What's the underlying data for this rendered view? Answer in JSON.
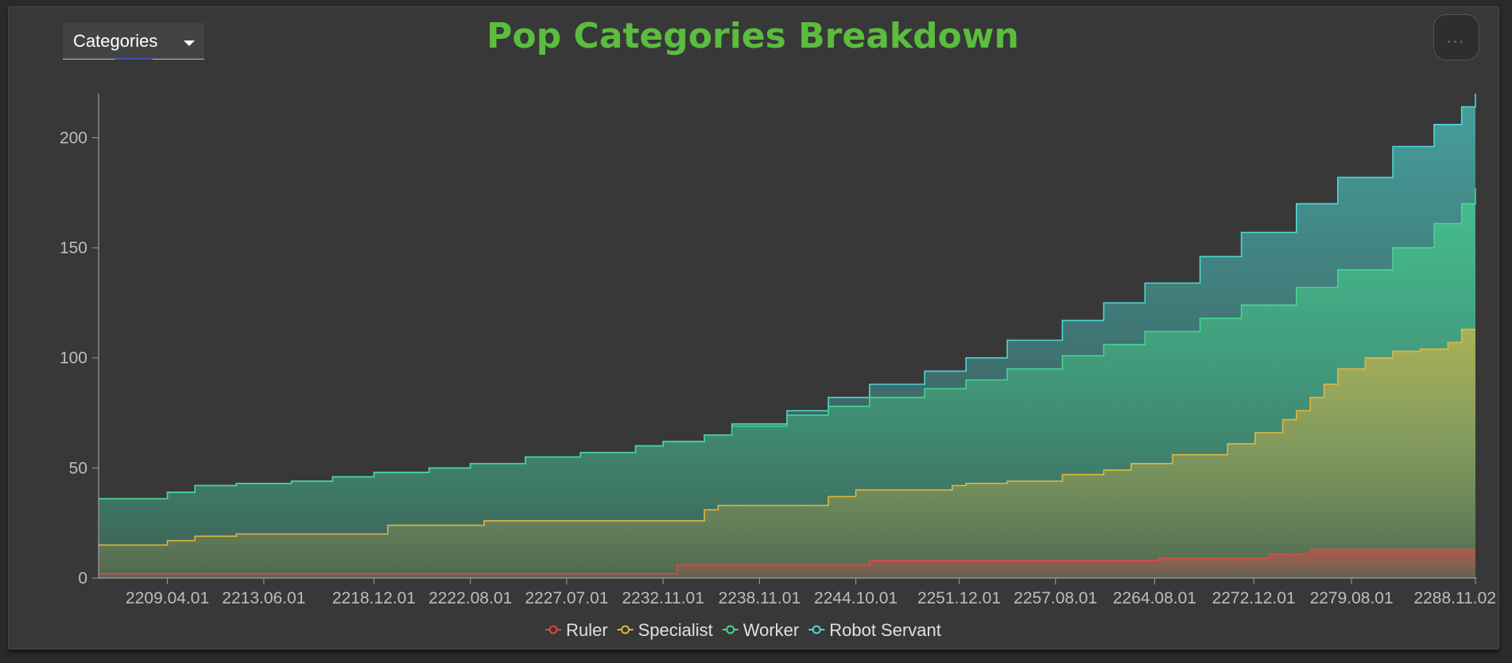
{
  "header": {
    "dropdown_label": "Categories",
    "title": "Pop Categories Breakdown",
    "menu_glyph": "..."
  },
  "chart_data": {
    "type": "area",
    "stacked": true,
    "title": "Pop Categories Breakdown",
    "xlabel": "",
    "ylabel": "",
    "ylim": [
      0,
      220
    ],
    "yticks": [
      0,
      50,
      100,
      150,
      200
    ],
    "xticks": [
      "2209.04.01",
      "2213.06.01",
      "2218.12.01",
      "2222.08.01",
      "2227.07.01",
      "2232.11.01",
      "2238.11.01",
      "2244.10.01",
      "2251.12.01",
      "2257.08.01",
      "2264.08.01",
      "2272.12.01",
      "2279.08.01",
      "2288.11.02"
    ],
    "x_positions": [
      0.05,
      0.12,
      0.2,
      0.27,
      0.34,
      0.41,
      0.48,
      0.55,
      0.625,
      0.695,
      0.767,
      0.839,
      0.91,
      1.0
    ],
    "legend_position": "bottom",
    "series": [
      {
        "name": "Ruler",
        "color": "#d94a4a",
        "x": [
          0,
          0.41,
          0.42,
          0.55,
          0.56,
          0.76,
          0.77,
          0.84,
          0.85,
          0.87,
          0.88,
          1.0
        ],
        "y": [
          2,
          2,
          6,
          6,
          8,
          8,
          9,
          9,
          11,
          11,
          13,
          13
        ]
      },
      {
        "name": "Specialist",
        "color": "#e2b640",
        "x": [
          0,
          0.035,
          0.05,
          0.07,
          0.1,
          0.2,
          0.21,
          0.27,
          0.28,
          0.41,
          0.44,
          0.45,
          0.5,
          0.53,
          0.55,
          0.6,
          0.62,
          0.63,
          0.66,
          0.7,
          0.73,
          0.75,
          0.78,
          0.82,
          0.84,
          0.86,
          0.87,
          0.88,
          0.89,
          0.9,
          0.92,
          0.94,
          0.96,
          0.98,
          0.99,
          1.0
        ],
        "y": [
          15,
          15,
          17,
          19,
          20,
          20,
          24,
          24,
          26,
          26,
          31,
          33,
          33,
          37,
          40,
          40,
          42,
          43,
          44,
          47,
          49,
          52,
          56,
          61,
          66,
          72,
          76,
          82,
          88,
          95,
          100,
          103,
          104,
          107,
          113,
          113
        ]
      },
      {
        "name": "Worker",
        "color": "#45d68e",
        "x": [
          0,
          0.035,
          0.05,
          0.07,
          0.1,
          0.14,
          0.17,
          0.2,
          0.24,
          0.27,
          0.31,
          0.35,
          0.39,
          0.41,
          0.44,
          0.46,
          0.5,
          0.53,
          0.56,
          0.6,
          0.63,
          0.66,
          0.7,
          0.73,
          0.76,
          0.8,
          0.83,
          0.87,
          0.9,
          0.94,
          0.97,
          0.99,
          1.0
        ],
        "y": [
          36,
          36,
          39,
          42,
          43,
          44,
          46,
          48,
          50,
          52,
          55,
          57,
          60,
          62,
          65,
          69,
          74,
          78,
          82,
          86,
          90,
          95,
          101,
          106,
          112,
          118,
          124,
          132,
          140,
          150,
          161,
          170,
          177
        ]
      },
      {
        "name": "Robot Servant",
        "color": "#4dd8d4",
        "x": [
          0,
          0.035,
          0.05,
          0.07,
          0.1,
          0.14,
          0.17,
          0.2,
          0.24,
          0.27,
          0.31,
          0.35,
          0.39,
          0.41,
          0.44,
          0.46,
          0.5,
          0.53,
          0.56,
          0.6,
          0.63,
          0.66,
          0.7,
          0.73,
          0.76,
          0.8,
          0.83,
          0.87,
          0.9,
          0.94,
          0.97,
          0.99,
          1.0
        ],
        "y": [
          36,
          36,
          39,
          42,
          43,
          44,
          46,
          48,
          50,
          52,
          55,
          57,
          60,
          62,
          65,
          70,
          76,
          82,
          88,
          94,
          100,
          108,
          117,
          125,
          134,
          146,
          157,
          170,
          182,
          196,
          206,
          214,
          220
        ]
      }
    ]
  }
}
